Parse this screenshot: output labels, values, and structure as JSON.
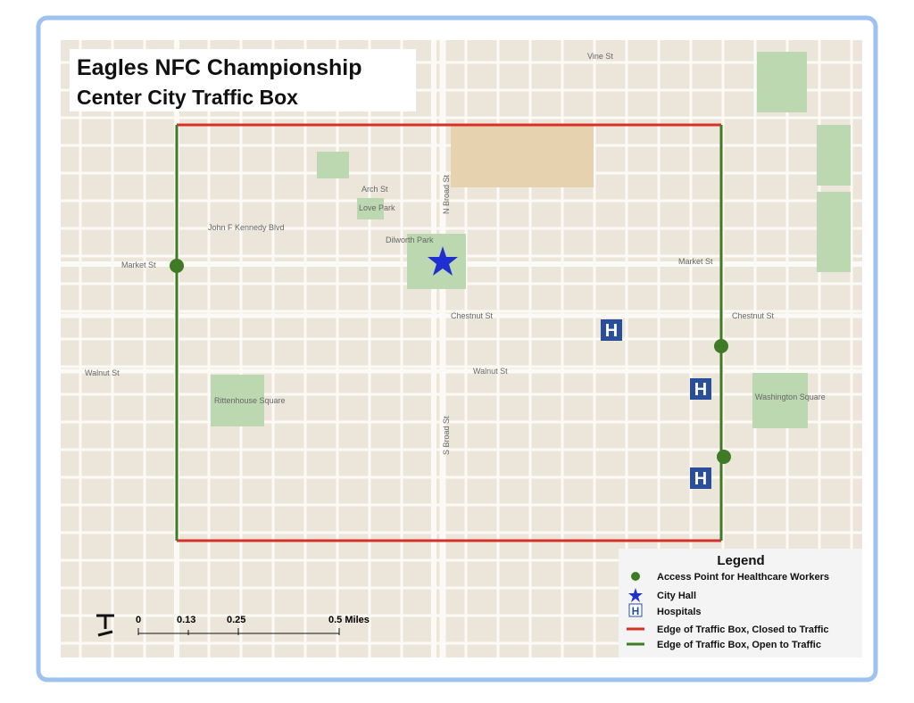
{
  "header": {
    "title": "Eagles NFC Championship",
    "subtitle": "Center City Traffic Box"
  },
  "legend": {
    "title": "Legend",
    "items": [
      "Access Point for Healthcare Workers",
      "City Hall",
      "Hospitals",
      "Edge of Traffic Box, Closed to Traffic",
      "Edge of Traffic Box, Open to Traffic"
    ]
  },
  "scale": {
    "labels": [
      "0",
      "0.13",
      "0.25",
      "0.5 Miles"
    ]
  },
  "streets": [
    "Market St",
    "Market St",
    "Chestnut St",
    "Chestnut St",
    "Walnut St",
    "Walnut St",
    "John F Kennedy Blvd",
    "Arch St",
    "S Broad St",
    "N Broad St",
    "Vine St",
    "Dilworth Park",
    "Rittenhouse Square",
    "Washington Square",
    "Love Park"
  ]
}
